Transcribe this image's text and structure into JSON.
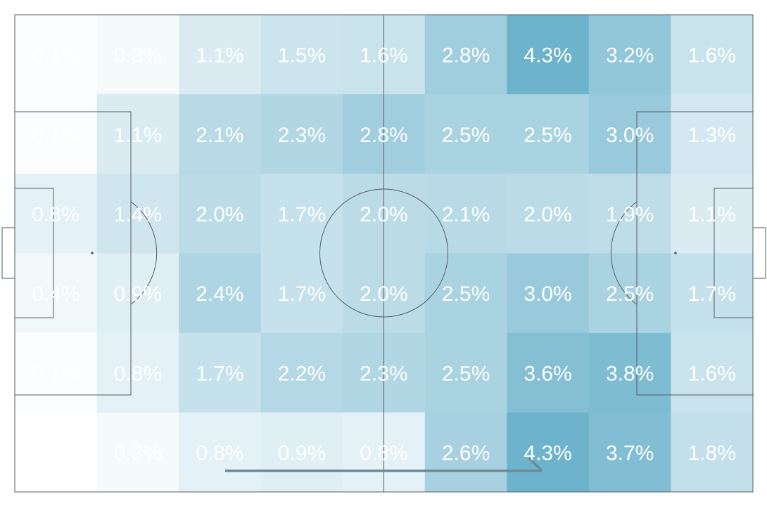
{
  "chart_data": {
    "type": "heatmap",
    "rows": 6,
    "cols": 9,
    "values": [
      [
        0.1,
        0.3,
        1.1,
        1.5,
        1.6,
        2.8,
        4.3,
        3.2,
        1.6
      ],
      [
        0.1,
        1.1,
        2.1,
        2.3,
        2.8,
        2.5,
        2.5,
        3.0,
        1.3
      ],
      [
        0.8,
        1.4,
        2.0,
        1.7,
        2.0,
        2.1,
        2.0,
        1.9,
        1.1
      ],
      [
        0.4,
        0.9,
        2.4,
        1.7,
        2.0,
        2.5,
        3.0,
        2.5,
        1.7
      ],
      [
        0.1,
        0.8,
        1.7,
        2.2,
        2.3,
        2.5,
        3.6,
        3.8,
        1.6
      ],
      [
        0.0,
        0.3,
        0.8,
        0.9,
        0.8,
        2.6,
        4.3,
        3.7,
        1.8
      ]
    ],
    "labels": [
      [
        "0.1%",
        "0.3%",
        "1.1%",
        "1.5%",
        "1.6%",
        "2.8%",
        "4.3%",
        "3.2%",
        "1.6%"
      ],
      [
        "0.1%",
        "1.1%",
        "2.1%",
        "2.3%",
        "2.8%",
        "2.5%",
        "2.5%",
        "3.0%",
        "1.3%"
      ],
      [
        "0.8%",
        "1.4%",
        "2.0%",
        "1.7%",
        "2.0%",
        "2.1%",
        "2.0%",
        "1.9%",
        "1.1%"
      ],
      [
        "0.4%",
        "0.9%",
        "2.4%",
        "1.7%",
        "2.0%",
        "2.5%",
        "3.0%",
        "2.5%",
        "1.7%"
      ],
      [
        "0.1%",
        "0.8%",
        "1.7%",
        "2.2%",
        "2.3%",
        "2.5%",
        "3.6%",
        "3.8%",
        "1.6%"
      ],
      [
        "",
        "0.3%",
        "0.8%",
        "0.9%",
        "0.8%",
        "2.6%",
        "4.3%",
        "3.7%",
        "1.8%"
      ]
    ],
    "color_min": "#ffffff",
    "color_max": "#6db3cc",
    "value_max": 4.3,
    "direction_arrow": true
  },
  "colors": {
    "pitch_lines": "#555b60",
    "arrow": "#6e8a94",
    "label": "#ffffff"
  }
}
